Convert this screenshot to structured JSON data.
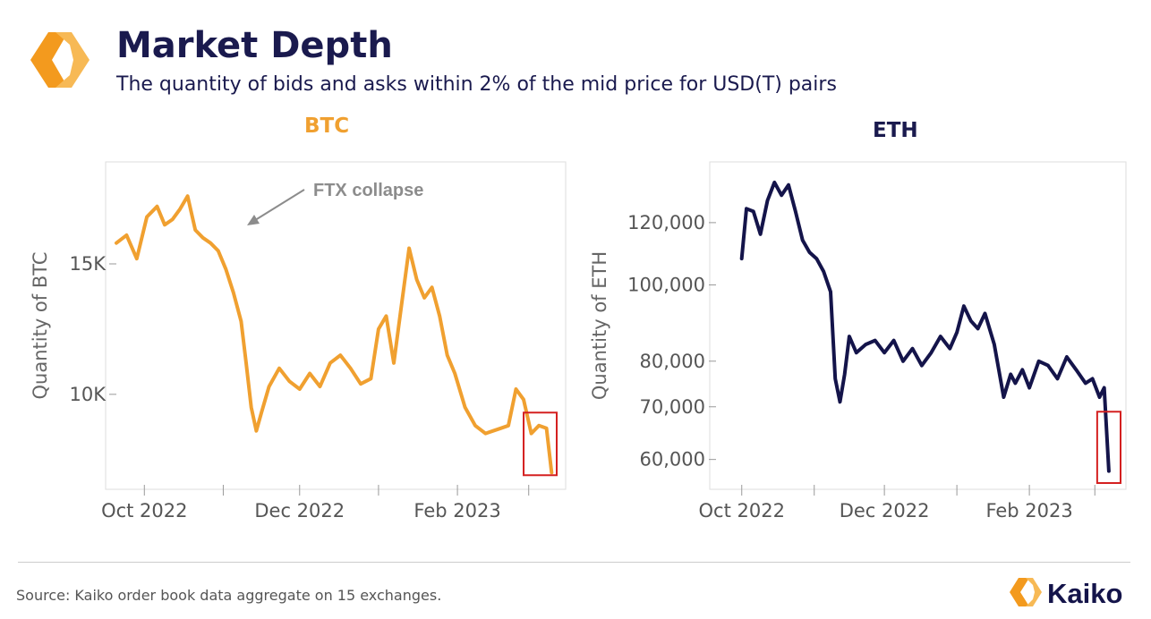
{
  "header": {
    "title": "Market Depth",
    "subtitle": "The quantity of bids and asks within 2% of the mid price for USD(T) pairs"
  },
  "colors": {
    "btc": "#f0a030",
    "eth": "#14144a",
    "highlight": "#d42020",
    "logo_orange": "#f39a1e",
    "text_navy": "#1a1a4e"
  },
  "footer": {
    "source": "Source: Kaiko order book data aggregate on 15 exchanges.",
    "brand": "Kaiko"
  },
  "chart_data": [
    {
      "type": "line",
      "title": "BTC",
      "xlabel": "",
      "ylabel": "Quantity of BTC",
      "x_tick_labels": [
        "Oct 2022",
        "Dec 2022",
        "Feb 2023"
      ],
      "y_tick_labels": [
        "15K",
        "10K"
      ],
      "y_ticks": [
        15000,
        10000
      ],
      "ylim": [
        6600,
        18600
      ],
      "xlim": [
        "2022-09-20",
        "2023-03-12"
      ],
      "annotation": {
        "text": "FTX collapse",
        "date": "2022-11-08",
        "value": 16200
      },
      "highlight_range": {
        "x": [
          "2023-02-27",
          "2023-03-12"
        ],
        "y": [
          6900,
          9300
        ]
      },
      "series": [
        {
          "x": [
            "2022-09-20",
            "2022-09-24",
            "2022-09-28",
            "2022-10-02",
            "2022-10-06",
            "2022-10-09",
            "2022-10-12",
            "2022-10-15",
            "2022-10-18",
            "2022-10-21",
            "2022-10-24",
            "2022-10-27",
            "2022-10-30",
            "2022-11-02",
            "2022-11-05",
            "2022-11-08",
            "2022-11-10",
            "2022-11-12",
            "2022-11-14",
            "2022-11-16",
            "2022-11-19",
            "2022-11-23",
            "2022-11-27",
            "2022-12-01",
            "2022-12-05",
            "2022-12-09",
            "2022-12-13",
            "2022-12-17",
            "2022-12-21",
            "2022-12-25",
            "2022-12-29",
            "2023-01-01",
            "2023-01-04",
            "2023-01-07",
            "2023-01-10",
            "2023-01-13",
            "2023-01-16",
            "2023-01-19",
            "2023-01-22",
            "2023-01-25",
            "2023-01-28",
            "2023-01-31",
            "2023-02-04",
            "2023-02-08",
            "2023-02-12",
            "2023-02-15",
            "2023-02-18",
            "2023-02-21",
            "2023-02-24",
            "2023-02-27",
            "2023-03-02",
            "2023-03-05",
            "2023-03-08",
            "2023-03-10"
          ],
          "values": [
            15800,
            16100,
            15200,
            16800,
            17200,
            16500,
            16700,
            17100,
            17600,
            16300,
            16000,
            15800,
            15500,
            14800,
            13900,
            12800,
            11200,
            9500,
            8600,
            9300,
            10300,
            11000,
            10500,
            10200,
            10800,
            10300,
            11200,
            11500,
            11000,
            10400,
            10600,
            12500,
            13000,
            11200,
            13400,
            15600,
            14400,
            13700,
            14100,
            13000,
            11500,
            10800,
            9500,
            8800,
            8500,
            8600,
            8700,
            8800,
            10200,
            9800,
            8500,
            8800,
            8700,
            7000
          ]
        }
      ]
    },
    {
      "type": "line",
      "title": "ETH",
      "xlabel": "",
      "ylabel": "Quantity of ETH",
      "y_scale": "log",
      "x_tick_labels": [
        "Oct 2022",
        "Dec 2022",
        "Feb 2023"
      ],
      "y_tick_labels": [
        "120,000",
        "100,000",
        "80,000",
        "70,000",
        "60,000"
      ],
      "y_ticks": [
        120000,
        100000,
        80000,
        70000,
        60000
      ],
      "ylim": [
        56000,
        140000
      ],
      "xlim": [
        "2022-09-20",
        "2023-03-12"
      ],
      "highlight_range": {
        "x": [
          "2023-03-02",
          "2023-03-12"
        ],
        "y": [
          56000,
          69000
        ]
      },
      "series": [
        {
          "x": [
            "2022-10-01",
            "2022-10-03",
            "2022-10-06",
            "2022-10-09",
            "2022-10-12",
            "2022-10-15",
            "2022-10-18",
            "2022-10-21",
            "2022-10-24",
            "2022-10-27",
            "2022-10-30",
            "2022-11-02",
            "2022-11-05",
            "2022-11-08",
            "2022-11-10",
            "2022-11-12",
            "2022-11-14",
            "2022-11-16",
            "2022-11-19",
            "2022-11-23",
            "2022-11-27",
            "2022-12-01",
            "2022-12-05",
            "2022-12-09",
            "2022-12-13",
            "2022-12-17",
            "2022-12-21",
            "2022-12-25",
            "2022-12-29",
            "2023-01-01",
            "2023-01-04",
            "2023-01-07",
            "2023-01-10",
            "2023-01-13",
            "2023-01-17",
            "2023-01-21",
            "2023-01-24",
            "2023-01-26",
            "2023-01-29",
            "2023-02-01",
            "2023-02-05",
            "2023-02-09",
            "2023-02-13",
            "2023-02-17",
            "2023-02-21",
            "2023-02-25",
            "2023-02-28",
            "2023-03-03",
            "2023-03-05",
            "2023-03-07"
          ],
          "values": [
            108000,
            125000,
            124000,
            116000,
            128000,
            135000,
            130000,
            134000,
            124000,
            114000,
            110000,
            108000,
            104000,
            98000,
            76000,
            71000,
            77000,
            86000,
            82000,
            84000,
            85000,
            82000,
            85000,
            80000,
            83000,
            79000,
            82000,
            86000,
            83000,
            87000,
            94000,
            90000,
            88000,
            92000,
            84000,
            72000,
            77000,
            75000,
            78000,
            74000,
            80000,
            79000,
            76000,
            81000,
            78000,
            75000,
            76000,
            72000,
            74000,
            58000
          ]
        }
      ]
    }
  ]
}
